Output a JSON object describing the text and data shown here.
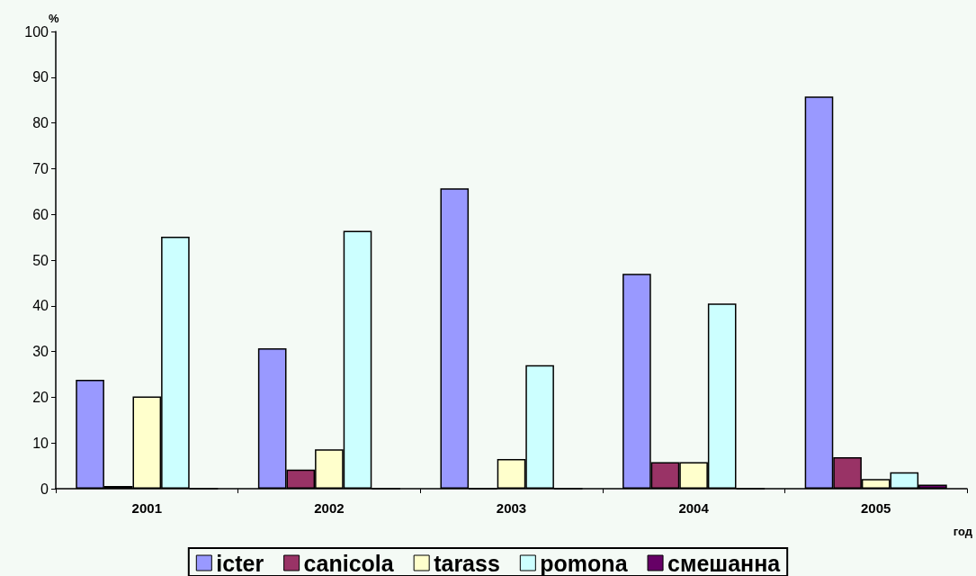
{
  "chart_data": {
    "type": "bar",
    "xlabel": "год",
    "ylabel": "%",
    "categories": [
      "2001",
      "2002",
      "2003",
      "2004",
      "2005"
    ],
    "series": [
      {
        "name": "icter",
        "color": "#9999ff",
        "values": [
          23.8,
          30.7,
          65.7,
          47.0,
          85.8
        ]
      },
      {
        "name": "canicola",
        "color": "#993366",
        "values": [
          0.6,
          4.2,
          0,
          5.8,
          6.9
        ]
      },
      {
        "name": "tarass",
        "color": "#ffffcc",
        "values": [
          20.2,
          8.6,
          6.5,
          5.8,
          2.1
        ]
      },
      {
        "name": "pomona",
        "color": "#ccffff",
        "values": [
          55.1,
          56.4,
          27.0,
          40.5,
          3.6
        ]
      },
      {
        "name": "смешанна",
        "color": "#660066",
        "values": [
          0,
          0,
          0,
          0,
          0.9
        ]
      }
    ],
    "ylim": [
      0,
      100
    ],
    "yticks": [
      0,
      10,
      20,
      30,
      40,
      50,
      60,
      70,
      80,
      90,
      100
    ],
    "grid": false,
    "legend": "bottom"
  }
}
